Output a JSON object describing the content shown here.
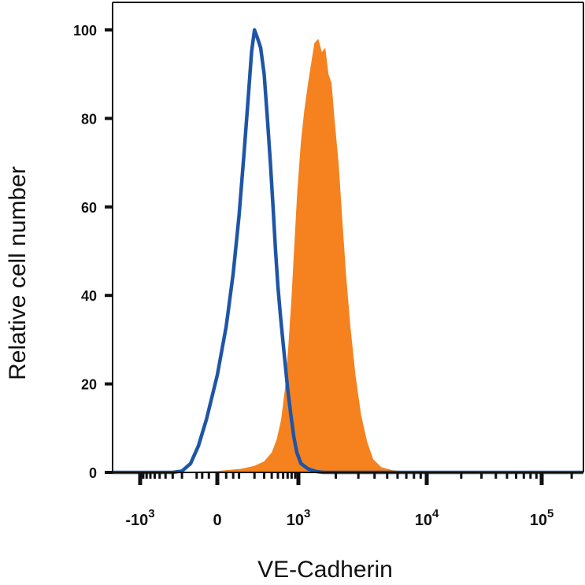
{
  "chart_data": {
    "type": "area",
    "title": "",
    "xlabel": "VE-Cadherin",
    "ylabel": "Relative cell number",
    "x_scale": "biexponential",
    "xlim": [
      -2000,
      262144
    ],
    "ylim": [
      0,
      105
    ],
    "y_ticks": [
      "0",
      "20",
      "40",
      "60",
      "80",
      "100"
    ],
    "x_ticks": [
      {
        "value": -1000,
        "base": "-10",
        "exp": "3"
      },
      {
        "value": 0,
        "base": "0",
        "exp": ""
      },
      {
        "value": 1000,
        "base": "10",
        "exp": "3"
      },
      {
        "value": 10000,
        "base": "10",
        "exp": "4"
      },
      {
        "value": 100000,
        "base": "10",
        "exp": "5"
      }
    ],
    "legend": "none",
    "grid": false,
    "colors": {
      "filled": "#f5821f",
      "outline": "#1f55a6",
      "axis": "#111111"
    },
    "series": [
      {
        "style": "filled",
        "points": [
          [
            -2000,
            0
          ],
          [
            -500,
            0
          ],
          [
            0,
            0.3
          ],
          [
            100,
            0.8
          ],
          [
            200,
            1.5
          ],
          [
            300,
            2.5
          ],
          [
            400,
            4.5
          ],
          [
            480,
            7.5
          ],
          [
            560,
            12
          ],
          [
            640,
            19
          ],
          [
            720,
            29
          ],
          [
            800,
            40
          ],
          [
            880,
            52
          ],
          [
            960,
            63
          ],
          [
            1050,
            75
          ],
          [
            1120,
            82
          ],
          [
            1200,
            88
          ],
          [
            1280,
            93
          ],
          [
            1350,
            97
          ],
          [
            1450,
            98
          ],
          [
            1550,
            95
          ],
          [
            1650,
            96
          ],
          [
            1750,
            90
          ],
          [
            1850,
            88
          ],
          [
            1950,
            80
          ],
          [
            2100,
            70
          ],
          [
            2250,
            57
          ],
          [
            2400,
            45
          ],
          [
            2600,
            33
          ],
          [
            2850,
            22
          ],
          [
            3150,
            13
          ],
          [
            3500,
            7
          ],
          [
            3900,
            3
          ],
          [
            4500,
            1.2
          ],
          [
            5500,
            0.5
          ],
          [
            7000,
            0.2
          ],
          [
            9000,
            0
          ],
          [
            262144,
            0
          ]
        ]
      },
      {
        "style": "outline",
        "points": [
          [
            -2000,
            0
          ],
          [
            -300,
            0
          ],
          [
            -200,
            0.3
          ],
          [
            -130,
            2
          ],
          [
            -80,
            6
          ],
          [
            -40,
            12
          ],
          [
            0,
            22
          ],
          [
            30,
            33
          ],
          [
            60,
            45
          ],
          [
            90,
            58
          ],
          [
            120,
            72
          ],
          [
            150,
            85
          ],
          [
            175,
            95
          ],
          [
            200,
            100
          ],
          [
            230,
            98
          ],
          [
            260,
            96
          ],
          [
            300,
            90
          ],
          [
            340,
            80
          ],
          [
            380,
            70
          ],
          [
            420,
            60
          ],
          [
            460,
            50
          ],
          [
            500,
            42
          ],
          [
            550,
            35
          ],
          [
            620,
            27
          ],
          [
            700,
            19
          ],
          [
            780,
            13
          ],
          [
            860,
            8
          ],
          [
            950,
            4.5
          ],
          [
            1050,
            2
          ],
          [
            1200,
            0.8
          ],
          [
            1400,
            0.2
          ],
          [
            1600,
            0
          ],
          [
            262144,
            0
          ]
        ]
      }
    ]
  }
}
